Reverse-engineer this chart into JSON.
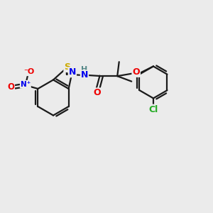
{
  "bg_color": "#ebebeb",
  "bond_color": "#1a1a1a",
  "bond_width": 1.6,
  "atom_colors": {
    "S": "#ccaa00",
    "N": "#0000ee",
    "O": "#ee0000",
    "Cl": "#22aa22",
    "H": "#558888",
    "C": "#1a1a1a"
  }
}
